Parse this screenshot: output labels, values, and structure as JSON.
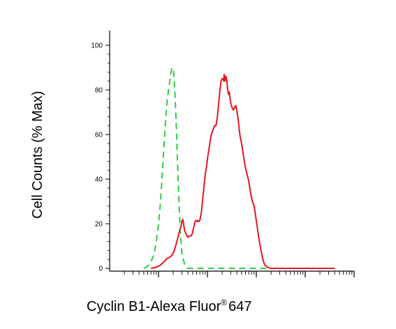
{
  "chart_data": {
    "type": "line",
    "title": "",
    "xlabel": "Cyclin B1-Alexa Fluor",
    "xlabel_superscript": "®",
    "xlabel_suffix": "647",
    "ylabel": "Cell Counts (% Max)",
    "x_scale": "log",
    "xlim": [
      1,
      100000
    ],
    "ylim": [
      0,
      100
    ],
    "y_ticks": [
      "0",
      "20",
      "40",
      "60",
      "80",
      "100"
    ],
    "grid": false,
    "legend": "none",
    "series": [
      {
        "color": "#2ecc40",
        "style": "dashed",
        "points": [
          [
            5,
            0
          ],
          [
            6,
            1
          ],
          [
            7,
            3
          ],
          [
            8,
            6
          ],
          [
            9,
            12
          ],
          [
            10,
            20
          ],
          [
            11,
            30
          ],
          [
            12,
            43
          ],
          [
            13,
            56
          ],
          [
            14,
            67
          ],
          [
            15,
            75
          ],
          [
            16,
            80
          ],
          [
            17,
            84
          ],
          [
            18,
            88
          ],
          [
            19,
            90
          ],
          [
            20,
            89
          ],
          [
            21,
            84
          ],
          [
            22,
            75
          ],
          [
            23,
            65
          ],
          [
            24,
            53
          ],
          [
            25,
            42
          ],
          [
            26,
            32
          ],
          [
            27,
            23
          ],
          [
            28,
            16
          ],
          [
            29,
            11
          ],
          [
            30,
            7
          ],
          [
            32,
            4
          ],
          [
            34,
            2
          ],
          [
            36,
            1
          ],
          [
            38,
            0
          ],
          [
            45,
            0
          ],
          [
            200,
            0
          ],
          [
            1000,
            0
          ],
          [
            3000,
            0
          ],
          [
            10000,
            0
          ],
          [
            40000,
            0
          ]
        ]
      },
      {
        "color": "#e8141e",
        "style": "solid",
        "points": [
          [
            7,
            0
          ],
          [
            9,
            0.5
          ],
          [
            11,
            1.5
          ],
          [
            13,
            3
          ],
          [
            15,
            4.5
          ],
          [
            17,
            5
          ],
          [
            19,
            6
          ],
          [
            21,
            8
          ],
          [
            23,
            11
          ],
          [
            25,
            14
          ],
          [
            27,
            17
          ],
          [
            29,
            19
          ],
          [
            30,
            21
          ],
          [
            31,
            22
          ],
          [
            32,
            21
          ],
          [
            33,
            19
          ],
          [
            34,
            17
          ],
          [
            36,
            16
          ],
          [
            38,
            14.5
          ],
          [
            40,
            14
          ],
          [
            43,
            14.5
          ],
          [
            46,
            14.5
          ],
          [
            49,
            15.5
          ],
          [
            52,
            18
          ],
          [
            55,
            20.5
          ],
          [
            58,
            21.5
          ],
          [
            61,
            21
          ],
          [
            64,
            21.5
          ],
          [
            67,
            21
          ],
          [
            70,
            21.5
          ],
          [
            75,
            25
          ],
          [
            80,
            31
          ],
          [
            85,
            37
          ],
          [
            90,
            42
          ],
          [
            95,
            45
          ],
          [
            100,
            49
          ],
          [
            110,
            55
          ],
          [
            120,
            60
          ],
          [
            130,
            62
          ],
          [
            140,
            64
          ],
          [
            150,
            64
          ],
          [
            160,
            68
          ],
          [
            170,
            74
          ],
          [
            180,
            80
          ],
          [
            190,
            84
          ],
          [
            200,
            85
          ],
          [
            210,
            85
          ],
          [
            215,
            84
          ],
          [
            220,
            87
          ],
          [
            230,
            84
          ],
          [
            240,
            86
          ],
          [
            250,
            84
          ],
          [
            260,
            80
          ],
          [
            270,
            78
          ],
          [
            280,
            79
          ],
          [
            300,
            74
          ],
          [
            320,
            72
          ],
          [
            340,
            71
          ],
          [
            360,
            72
          ],
          [
            380,
            73
          ],
          [
            400,
            71
          ],
          [
            430,
            66
          ],
          [
            460,
            60
          ],
          [
            500,
            56
          ],
          [
            550,
            50
          ],
          [
            600,
            45
          ],
          [
            650,
            42
          ],
          [
            700,
            39
          ],
          [
            760,
            34
          ],
          [
            830,
            30
          ],
          [
            900,
            28
          ],
          [
            960,
            24
          ],
          [
            1020,
            20
          ],
          [
            1100,
            15
          ],
          [
            1200,
            10
          ],
          [
            1300,
            6
          ],
          [
            1400,
            3
          ],
          [
            1500,
            1.5
          ],
          [
            1700,
            0.5
          ],
          [
            2000,
            0
          ],
          [
            5000,
            0
          ],
          [
            20000,
            0
          ],
          [
            40000,
            0
          ]
        ]
      }
    ]
  }
}
